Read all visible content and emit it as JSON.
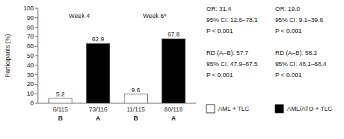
{
  "chart_data": {
    "type": "bar",
    "ylabel": "Participants (%)",
    "categories": [
      "Week 4",
      "Week 6*"
    ],
    "series": [
      {
        "name": "AML + TLC",
        "color": "white",
        "values": [
          5.2,
          9.6
        ],
        "group_letter": "B",
        "counts": [
          "6/115",
          "11/115"
        ]
      },
      {
        "name": "AML/ATO + TLC",
        "color": "black",
        "values": [
          62.9,
          67.8
        ],
        "group_letter": "A",
        "counts": [
          "73/116",
          "80/118"
        ]
      }
    ],
    "ylim": [
      0,
      100
    ],
    "yticks": [
      0,
      10,
      20,
      30,
      40,
      50,
      60,
      70,
      80,
      90,
      100
    ],
    "data_labels": true,
    "grid": false,
    "annotations": [
      [
        [
          "OR: 31.4",
          "95% CI: 12.6–78.1",
          "P < 0.001"
        ],
        [
          "RD (A–B): 57.7",
          "95% CI: 47.9–67.5",
          "P < 0.001"
        ]
      ],
      [
        [
          "OR: 19.0",
          "95% CI: 9.1–39.6",
          "P < 0.001"
        ],
        [
          "RD (A–B): 58.2",
          "95% CI: 48.1–68.4",
          "P < 0.001"
        ]
      ]
    ]
  }
}
